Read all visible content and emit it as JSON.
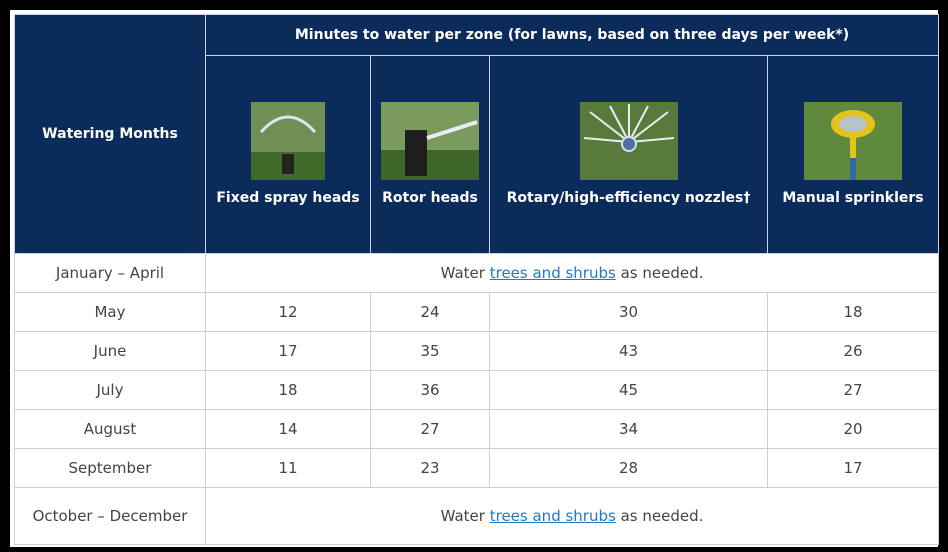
{
  "header": {
    "group_title": "Minutes to water per zone (for lawns, based on three days per week*)",
    "row_header": "Watering Months",
    "columns": [
      "Fixed spray heads",
      "Rotor heads",
      "Rotary/high-efficiency nozzles†",
      "Manual sprinklers"
    ]
  },
  "rows": [
    {
      "month": "January – April",
      "note": {
        "before": "Water",
        "link": "trees and shrubs",
        "after": "as needed."
      }
    },
    {
      "month": "May",
      "values": [
        12,
        24,
        30,
        18
      ]
    },
    {
      "month": "June",
      "values": [
        17,
        35,
        43,
        26
      ]
    },
    {
      "month": "July",
      "values": [
        18,
        36,
        45,
        27
      ]
    },
    {
      "month": "August",
      "values": [
        14,
        27,
        34,
        20
      ]
    },
    {
      "month": "September",
      "values": [
        11,
        23,
        28,
        17
      ]
    },
    {
      "month": "October – December",
      "note": {
        "before": "Water",
        "link": "trees and shrubs",
        "after": "as needed."
      }
    }
  ]
}
